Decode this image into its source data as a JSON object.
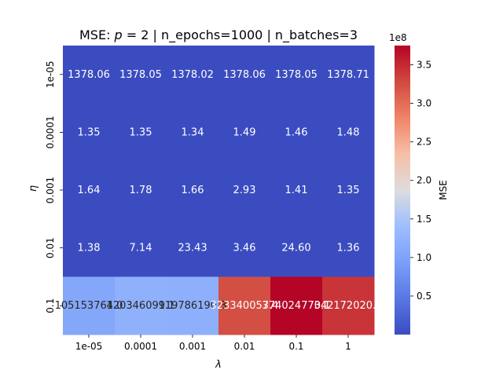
{
  "chart_data": {
    "type": "heatmap",
    "title_prefix": "MSE: ",
    "title_var": "p",
    "title_suffix": " = 2 | n_epochs=1000 | n_batches=3",
    "xlabel": "λ",
    "ylabel": "η",
    "x_categories": [
      "1e-05",
      "0.0001",
      "0.001",
      "0.01",
      "0.1",
      "1"
    ],
    "y_categories": [
      "1e-05",
      "0.0001",
      "0.001",
      "0.01",
      "0.1"
    ],
    "values": [
      [
        1378.06,
        1378.05,
        1378.02,
        1378.06,
        1378.05,
        1378.71
      ],
      [
        1.35,
        1.35,
        1.34,
        1.49,
        1.46,
        1.48
      ],
      [
        1.64,
        1.78,
        1.66,
        2.93,
        1.41,
        1.35
      ],
      [
        1.38,
        7.14,
        23.43,
        3.46,
        24.6,
        1.36
      ],
      [
        105153764.0,
        120346099.0,
        119786190.0,
        323340057.0,
        374024770.0,
        342172020.8
      ]
    ],
    "cell_labels": [
      [
        "1378.06",
        "1378.05",
        "1378.02",
        "1378.06",
        "1378.05",
        "1378.71"
      ],
      [
        "1.35",
        "1.35",
        "1.34",
        "1.49",
        "1.46",
        "1.48"
      ],
      [
        "1.64",
        "1.78",
        "1.66",
        "2.93",
        "1.41",
        "1.35"
      ],
      [
        "1.38",
        "7.14",
        "23.43",
        "3.46",
        "24.60",
        "1.36"
      ],
      [
        "105153764.0",
        "120346099.1",
        "119786190.3",
        "323340057.4",
        "374024770.1",
        "342172020.8"
      ]
    ],
    "colorbar": {
      "label": "MSE",
      "multiplier": "1e8",
      "vmin": 0,
      "vmax": 375000000,
      "ticks": [
        0.5,
        1.0,
        1.5,
        2.0,
        2.5,
        3.0,
        3.5
      ],
      "tick_labels": [
        "0.5",
        "1.0",
        "1.5",
        "2.0",
        "2.5",
        "3.0",
        "3.5"
      ],
      "colormap": "coolwarm"
    }
  }
}
